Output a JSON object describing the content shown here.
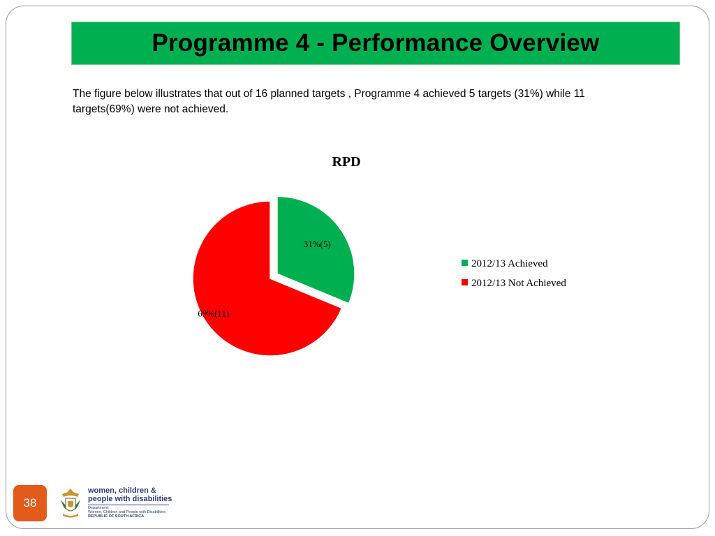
{
  "slide": {
    "title": "Programme 4 - Performance Overview",
    "intro": "The figure below illustrates that out of 16 planned targets , Programme 4 achieved 5 targets (31%)  while 11 targets(69%) were not achieved.",
    "page_number": "38",
    "title_bar_color": "#00b050",
    "page_badge_color": "#e35b1b"
  },
  "logo": {
    "line1": "women, children &",
    "line2": "people with disabilities",
    "small1": "Department:",
    "small2": "Women, Children and People with Disabilities",
    "small3": "REPUBLIC OF SOUTH AFRICA"
  },
  "chart_data": {
    "type": "pie",
    "title": "RPD",
    "slices": [
      {
        "name": "2012/13 Achieved",
        "value": 5,
        "percent": 31,
        "label": "31%(5)",
        "color": "#00b050",
        "exploded": true
      },
      {
        "name": "2012/13 Not Achieved",
        "value": 11,
        "percent": 69,
        "label": "69%(11)",
        "color": "#ff0000",
        "exploded": false
      }
    ],
    "legend_position": "right"
  }
}
